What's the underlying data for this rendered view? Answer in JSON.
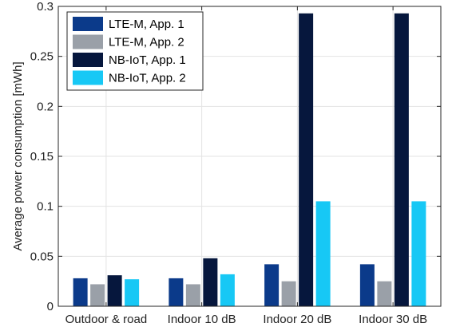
{
  "chart_data": {
    "type": "bar",
    "title": "",
    "xlabel": "",
    "ylabel": "Average power consumption [mWh]",
    "categories": [
      "Outdoor & road",
      "Indoor 10 dB",
      "Indoor 20 dB",
      "Indoor 30 dB"
    ],
    "series": [
      {
        "name": "LTE-M, App. 1",
        "color": "#0b3a8a",
        "values": [
          0.028,
          0.028,
          0.042,
          0.042
        ]
      },
      {
        "name": "LTE-M, App. 2",
        "color": "#9aa0a8",
        "values": [
          0.022,
          0.022,
          0.025,
          0.025
        ]
      },
      {
        "name": "NB-IoT, App. 1",
        "color": "#06173d",
        "values": [
          0.031,
          0.048,
          0.293,
          0.293
        ]
      },
      {
        "name": "NB-IoT, App. 2",
        "color": "#17c8f5",
        "values": [
          0.027,
          0.032,
          0.105,
          0.105
        ]
      }
    ],
    "ylim": [
      0,
      0.3
    ],
    "yticks": [
      0,
      0.05,
      0.1,
      0.15,
      0.2,
      0.25,
      0.3
    ],
    "ytick_labels": [
      "0",
      "0.05",
      "0.1",
      "0.15",
      "0.2",
      "0.25",
      "0.3"
    ],
    "grid": true,
    "legend_position": "top-left"
  }
}
